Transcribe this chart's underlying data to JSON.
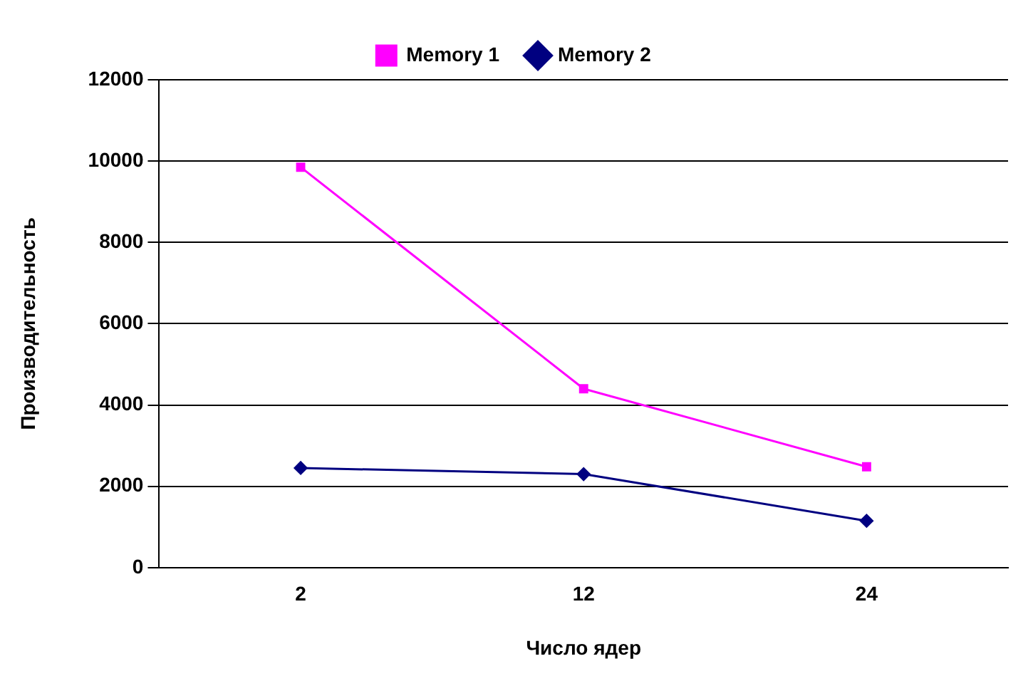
{
  "chart_data": {
    "type": "line",
    "xlabel": "Число ядер",
    "ylabel": "Производительность",
    "categories": [
      "2",
      "12",
      "24"
    ],
    "series": [
      {
        "name": "Memory 1",
        "color": "#ff00ff",
        "marker": "square",
        "values": [
          9850,
          4400,
          2480
        ]
      },
      {
        "name": "Memory 2",
        "color": "#000080",
        "marker": "diamond",
        "values": [
          2450,
          2300,
          1150
        ]
      }
    ],
    "ylim": [
      0,
      12000
    ],
    "yticks": [
      0,
      2000,
      4000,
      6000,
      8000,
      10000,
      12000
    ],
    "grid": "y",
    "legend": "top"
  }
}
